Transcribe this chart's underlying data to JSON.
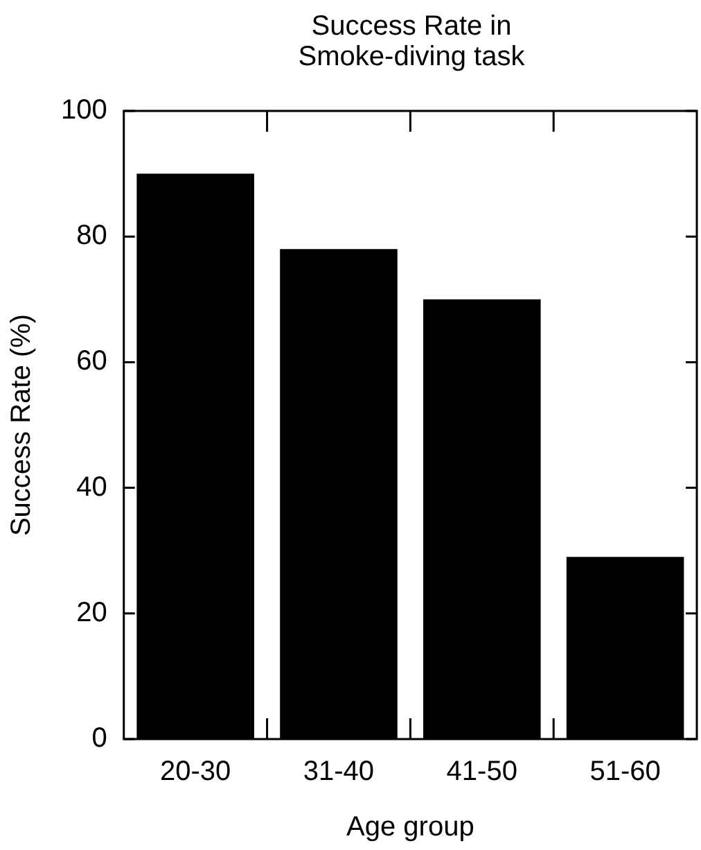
{
  "chart_data": {
    "type": "bar",
    "title": "Success Rate in Smoke-diving task",
    "xlabel": "Age group",
    "ylabel": "Success Rate (%)",
    "categories": [
      "20-30",
      "31-40",
      "41-50",
      "51-60"
    ],
    "values": [
      90,
      78,
      70,
      29
    ],
    "color": "#000000",
    "ylim": [
      0,
      100
    ],
    "yticks": [
      0,
      20,
      40,
      60,
      80,
      100
    ],
    "grid": false,
    "legend": false
  }
}
